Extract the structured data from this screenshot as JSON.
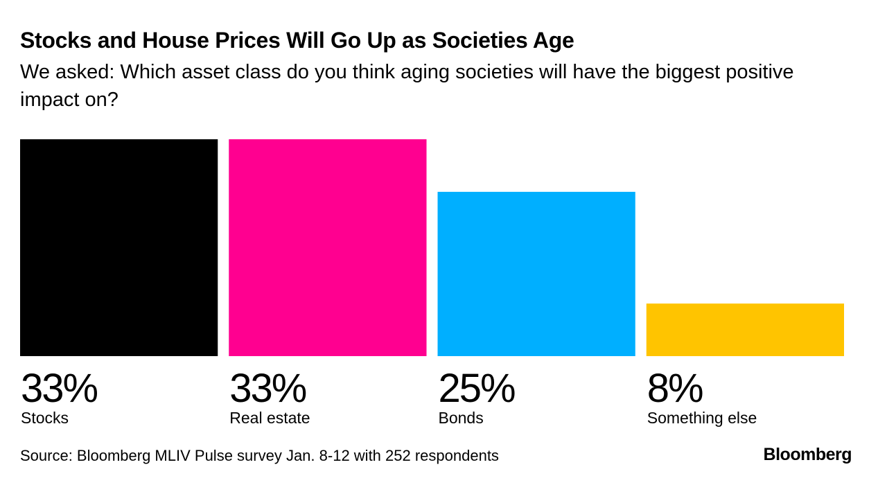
{
  "chart_data": {
    "type": "bar",
    "title": "Stocks and House Prices Will Go Up as Societies Age",
    "subtitle": "We asked: Which asset class do you think aging societies will have the biggest positive impact on?",
    "categories": [
      "Stocks",
      "Real estate",
      "Bonds",
      "Something else"
    ],
    "values": [
      33,
      33,
      25,
      8
    ],
    "value_labels": [
      "33%",
      "33%",
      "25%",
      "8%"
    ],
    "colors": [
      "#000000",
      "#ff0090",
      "#00afff",
      "#ffc400"
    ],
    "ylim": [
      0,
      33
    ],
    "xlabel": "",
    "ylabel": "",
    "grid": false
  },
  "footer": {
    "source": "Source: Bloomberg MLIV Pulse survey Jan. 8-12 with 252 respondents",
    "brand": "Bloomberg"
  }
}
